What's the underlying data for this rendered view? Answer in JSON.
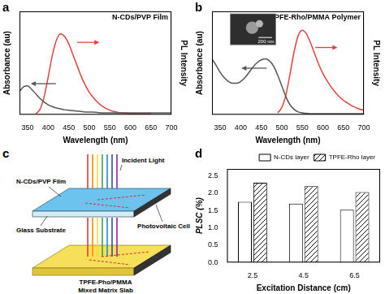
{
  "chart_data": [
    {
      "panel": "a",
      "type": "line",
      "title": "N-CDs/PVP Film",
      "x_label": "Wavelength (nm)",
      "y_label": "Absorbance (au)",
      "y2_label": "PL Intensity",
      "x": [
        330,
        340,
        350,
        360,
        370,
        380,
        390,
        400,
        410,
        420,
        430,
        440,
        450,
        460,
        470,
        480,
        490,
        500,
        510,
        520,
        530,
        540,
        550,
        560,
        570,
        580,
        590,
        600,
        610,
        620,
        630,
        640,
        650,
        660,
        670,
        680,
        690,
        700
      ],
      "series": [
        {
          "color": "#555555",
          "values": [
            0.26,
            0.31,
            0.32,
            0.28,
            0.23,
            0.18,
            0.14,
            0.11,
            0.09,
            0.075,
            0.065,
            0.055,
            0.05,
            0.045,
            0.04,
            0.035,
            0.03,
            0.03,
            0.028,
            0.025,
            0.02,
            0.02,
            0.02,
            0.02,
            0.02,
            0.02,
            0.02,
            0.02,
            0.02,
            0.02,
            0.02,
            0.02,
            0.02,
            0.02,
            0.02,
            0.02,
            0.02,
            0.02
          ]
        },
        {
          "color": "#e8413c",
          "axis": "y2",
          "values": [
            null,
            null,
            null,
            null,
            0.01,
            0.06,
            0.2,
            0.42,
            0.66,
            0.83,
            0.9,
            0.87,
            0.79,
            0.67,
            0.55,
            0.43,
            0.33,
            0.25,
            0.19,
            0.14,
            0.1,
            0.07,
            0.05,
            0.035,
            0.025,
            0.02,
            0.015,
            0.01,
            0.01,
            0.01,
            0.01,
            0.01,
            0.01,
            null,
            null,
            null,
            null,
            null
          ]
        }
      ],
      "xlim": [
        330,
        700
      ],
      "xticks": [
        350,
        400,
        450,
        500,
        550,
        600,
        650,
        700
      ],
      "ylim": [
        0,
        1.15
      ],
      "y2lim": [
        0,
        1.15
      ],
      "grid": false,
      "tick_labels": "x"
    },
    {
      "panel": "b",
      "type": "line",
      "title": "TPFE-Rho/PMMA Polymer",
      "annotations": [
        "200 nm"
      ],
      "x_label": "Wavelength (nm)",
      "y_label": "Absorbance (au)",
      "y2_label": "PL Intensity",
      "x": [
        330,
        340,
        350,
        360,
        370,
        380,
        390,
        400,
        410,
        420,
        430,
        440,
        450,
        460,
        470,
        480,
        490,
        500,
        510,
        520,
        530,
        540,
        550,
        560,
        570,
        580,
        590,
        600,
        610,
        620,
        630,
        640,
        650,
        660,
        670,
        680,
        690,
        700
      ],
      "series": [
        {
          "color": "#555555",
          "values": [
            0.62,
            0.55,
            0.47,
            0.41,
            0.37,
            0.35,
            0.35,
            0.37,
            0.41,
            0.47,
            0.53,
            0.58,
            0.61,
            0.62,
            0.6,
            0.54,
            0.44,
            0.32,
            0.2,
            0.11,
            0.06,
            0.03,
            0.02,
            0.015,
            0.01,
            0.01,
            0.01,
            0.01,
            0.01,
            0.01,
            0.01,
            0.01,
            0.01,
            0.01,
            0.01,
            0.01,
            0.01,
            0.01
          ]
        },
        {
          "color": "#e8413c",
          "axis": "y2",
          "values": [
            null,
            null,
            null,
            null,
            null,
            null,
            null,
            null,
            null,
            null,
            null,
            null,
            null,
            null,
            null,
            null,
            0.02,
            0.08,
            0.22,
            0.45,
            0.7,
            0.88,
            0.94,
            0.9,
            0.8,
            0.68,
            0.56,
            0.46,
            0.38,
            0.31,
            0.25,
            0.2,
            0.16,
            0.13,
            0.1,
            0.08,
            0.06,
            0.05
          ]
        }
      ],
      "xlim": [
        330,
        700
      ],
      "xticks": [
        350,
        400,
        450,
        500,
        550,
        600,
        650,
        700
      ],
      "ylim": [
        0,
        1.15
      ],
      "y2lim": [
        0,
        1.15
      ],
      "grid": false,
      "tick_labels": "x"
    },
    {
      "panel": "d",
      "type": "bar",
      "x_label": "Excitation Distance (cm)",
      "y_label": "PLSC (%)",
      "categories": [
        "2.5",
        "4.5",
        "6.5"
      ],
      "series": [
        {
          "name": "N-CDs layer",
          "color": "#ffffff",
          "values": [
            1.75,
            1.7,
            1.52
          ]
        },
        {
          "name": "TPFE-Rho layer",
          "color": "#ffffff",
          "values": [
            2.3,
            2.2,
            2.03
          ]
        }
      ],
      "ylim": [
        0,
        2.7
      ],
      "yticks": [
        {
          "value": 0,
          "label": "0.0"
        },
        {
          "value": 0.5,
          "label": "0.5"
        },
        {
          "value": 1,
          "label": "1.0"
        },
        {
          "value": 1.5,
          "label": "1.5"
        },
        {
          "value": 2,
          "label": "2.0"
        },
        {
          "value": 2.5,
          "label": "2.5"
        }
      ],
      "legend": "upper right",
      "grid": false
    }
  ],
  "diagram": {
    "panel": "c",
    "film_label": "N-CDs/PVP Film",
    "light_label": "Incident Light",
    "cell_label": "Photovoltaic Cell",
    "substrate_label": "Glass Substrate",
    "slab_label": [
      "TPFE-Pho/PMMA",
      "Mixed Matrix Slab"
    ]
  }
}
